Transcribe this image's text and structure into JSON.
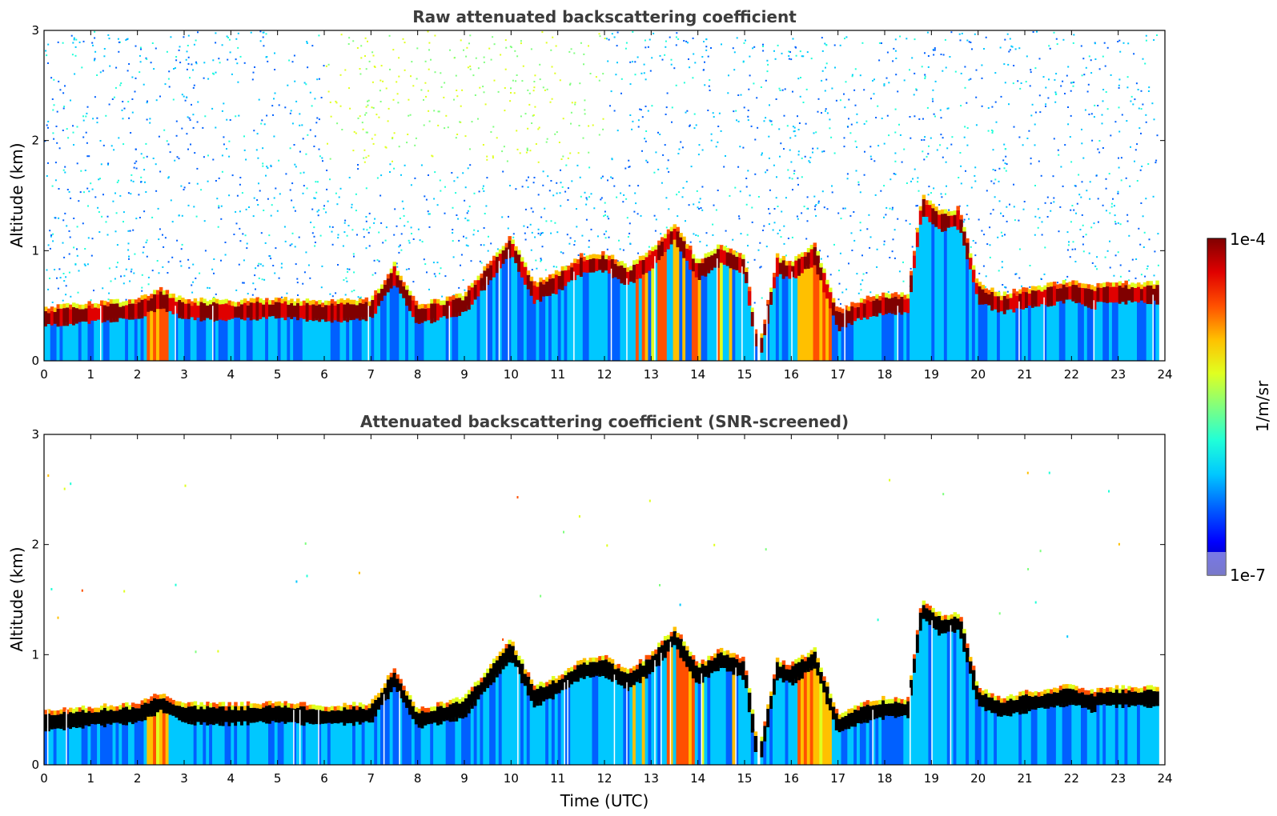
{
  "colors": {
    "jet": [
      "#00008f",
      "#0000ff",
      "#0060ff",
      "#00c8ff",
      "#20ffd8",
      "#80ff7f",
      "#e0ff20",
      "#ffc000",
      "#ff5000",
      "#e00000",
      "#800000"
    ],
    "saturated": "#000000",
    "background": "#ffffff"
  },
  "colorbar": {
    "max_label": "1e-4",
    "min_label": "1e-7",
    "unit_label": "1/m/sr",
    "vmin": 1e-07,
    "vmax": 0.0001,
    "scale": "log"
  },
  "chart_data": [
    {
      "type": "heatmap",
      "title": "Raw attenuated backscattering coefficient",
      "xlabel": "",
      "ylabel": "Altitude (km)",
      "xlim": [
        0,
        24
      ],
      "ylim": [
        0,
        3
      ],
      "x_ticks": [
        "0",
        "1",
        "2",
        "3",
        "4",
        "5",
        "6",
        "7",
        "8",
        "9",
        "10",
        "11",
        "12",
        "13",
        "14",
        "15",
        "16",
        "17",
        "18",
        "19",
        "20",
        "21",
        "22",
        "23",
        "24"
      ],
      "y_ticks": [
        "0",
        "1",
        "2",
        "3"
      ],
      "grid": false,
      "colorscale": "jet",
      "boundary_layer_top_km": {
        "time_utc": [
          0,
          1,
          2,
          2.5,
          3,
          4,
          5,
          6,
          7,
          7.5,
          8,
          9,
          10,
          10.5,
          11,
          11.5,
          12,
          12.5,
          13,
          13.5,
          14,
          14.5,
          15,
          15.3,
          15.7,
          16,
          16.5,
          17,
          17.5,
          18,
          18.5,
          18.8,
          19.2,
          19.6,
          20,
          20.5,
          21,
          21.5,
          22,
          22.5
        ],
        "altitude_km": [
          0.38,
          0.42,
          0.45,
          0.55,
          0.45,
          0.44,
          0.46,
          0.43,
          0.45,
          0.77,
          0.4,
          0.5,
          1.03,
          0.6,
          0.7,
          0.85,
          0.88,
          0.75,
          0.9,
          1.15,
          0.8,
          0.95,
          0.85,
          0.0,
          0.85,
          0.8,
          0.95,
          0.35,
          0.45,
          0.5,
          0.5,
          1.4,
          1.25,
          1.28,
          0.6,
          0.5,
          0.55,
          0.58,
          0.62,
          0.55
        ]
      },
      "surface_aerosol_value_m_sr": 2e-06,
      "clear_sky_noise_value_m_sr": 8e-07
    },
    {
      "type": "heatmap",
      "title": "Attenuated backscattering coefficient (SNR-screened)",
      "xlabel": "Time (UTC)",
      "ylabel": "Altitude (km)",
      "xlim": [
        0,
        24
      ],
      "ylim": [
        0,
        3
      ],
      "x_ticks": [
        "0",
        "1",
        "2",
        "3",
        "4",
        "5",
        "6",
        "7",
        "8",
        "9",
        "10",
        "11",
        "12",
        "13",
        "14",
        "15",
        "16",
        "17",
        "18",
        "19",
        "20",
        "21",
        "22",
        "23",
        "24"
      ],
      "y_ticks": [
        "0",
        "1",
        "2",
        "3"
      ],
      "grid": false,
      "colorscale": "jet",
      "saturated_values": "black"
    }
  ]
}
